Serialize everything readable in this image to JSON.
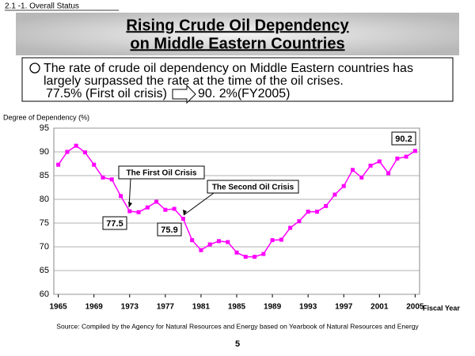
{
  "header": "2.1 -1. Overall Status",
  "title_lines": [
    "Rising Crude Oil Dependency",
    "on Middle Eastern Countries"
  ],
  "summary": {
    "lines": [
      "The rate of crude oil dependency on Middle Eastern countries has",
      "largely surpassed the rate at the time of the oil crises."
    ],
    "from": "77.5% (First oil crisis)",
    "to": "90. 2%(FY2005)"
  },
  "source": "Source: Compiled by the Agency for Natural Resources and Energy based on Yearbook of Natural Resources and Energy",
  "page": "5",
  "chart_data": {
    "type": "line",
    "y_label": "Degree of Dependency (%)",
    "x_label": "Fiscal Year",
    "x": [
      1965,
      1966,
      1967,
      1968,
      1969,
      1970,
      1971,
      1972,
      1973,
      1974,
      1975,
      1976,
      1977,
      1978,
      1979,
      1980,
      1981,
      1982,
      1983,
      1984,
      1985,
      1986,
      1987,
      1988,
      1989,
      1990,
      1991,
      1992,
      1993,
      1994,
      1995,
      1996,
      1997,
      1998,
      1999,
      2000,
      2001,
      2002,
      2003,
      2004,
      2005
    ],
    "series": [
      {
        "name": "Degree of Dependency",
        "color": "#ff00ff",
        "values": [
          87.3,
          90.0,
          91.3,
          89.9,
          87.3,
          84.6,
          84.2,
          80.7,
          77.5,
          77.3,
          78.3,
          79.5,
          77.8,
          78.0,
          75.9,
          71.4,
          69.3,
          70.5,
          71.2,
          71.0,
          68.8,
          67.9,
          67.9,
          68.5,
          71.4,
          71.5,
          74.0,
          75.4,
          77.4,
          77.4,
          78.6,
          81.0,
          82.8,
          86.2,
          84.6,
          87.1,
          88.0,
          85.5,
          88.6,
          89.0,
          90.2
        ]
      }
    ],
    "xlim": [
      1964.5,
      2005.5
    ],
    "xticks": [
      1965,
      1969,
      1973,
      1977,
      1981,
      1985,
      1989,
      1993,
      1997,
      2001,
      2005
    ],
    "ylim": [
      60,
      95
    ],
    "yticks": [
      60,
      65,
      70,
      75,
      80,
      85,
      90,
      95
    ],
    "grid": true,
    "annotations": [
      "The First Oil Crisis",
      "The Second Oil Crisis"
    ]
  }
}
